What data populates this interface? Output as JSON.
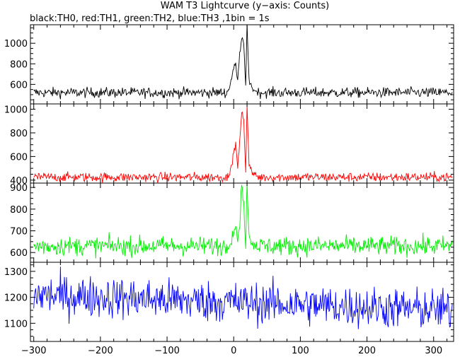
{
  "title": "WAM T3 Lightcurve (y−axis: Counts)",
  "subtitle": "black:TH0, red:TH1, green:TH2, blue:TH3 ,1bin = 1s",
  "chart_data": {
    "type": "line",
    "xlim": [
      -305,
      330
    ],
    "xticks": [
      -300,
      -200,
      -100,
      0,
      100,
      200,
      300
    ],
    "bin_seconds": 1,
    "panels": [
      {
        "name": "TH0",
        "color": "#000000",
        "ylim": [
          410,
          1180
        ],
        "yticks": [
          600,
          800,
          1000
        ],
        "baseline": 520,
        "noise_sd": 25,
        "burst": [
          {
            "x": -8,
            "y": 540
          },
          {
            "x": -3,
            "y": 640
          },
          {
            "x": 0,
            "y": 760
          },
          {
            "x": 3,
            "y": 810
          },
          {
            "x": 6,
            "y": 620
          },
          {
            "x": 9,
            "y": 880
          },
          {
            "x": 12,
            "y": 1060
          },
          {
            "x": 15,
            "y": 1000
          },
          {
            "x": 18,
            "y": 560
          },
          {
            "x": 20,
            "y": 1180
          },
          {
            "x": 23,
            "y": 640
          },
          {
            "x": 28,
            "y": 560
          },
          {
            "x": 35,
            "y": 530
          }
        ]
      },
      {
        "name": "TH1",
        "color": "#ff0000",
        "ylim": [
          375,
          1045
        ],
        "yticks": [
          400,
          600,
          800,
          1000
        ],
        "baseline": 425,
        "noise_sd": 20,
        "burst": [
          {
            "x": -8,
            "y": 440
          },
          {
            "x": -3,
            "y": 520
          },
          {
            "x": 0,
            "y": 640
          },
          {
            "x": 3,
            "y": 700
          },
          {
            "x": 6,
            "y": 500
          },
          {
            "x": 9,
            "y": 720
          },
          {
            "x": 12,
            "y": 990
          },
          {
            "x": 15,
            "y": 900
          },
          {
            "x": 18,
            "y": 470
          },
          {
            "x": 20,
            "y": 1045
          },
          {
            "x": 23,
            "y": 540
          },
          {
            "x": 28,
            "y": 460
          },
          {
            "x": 35,
            "y": 435
          }
        ]
      },
      {
        "name": "TH2",
        "color": "#00ee00",
        "ylim": [
          555,
          920
        ],
        "yticks": [
          600,
          700,
          800,
          900
        ],
        "baseline": 630,
        "noise_sd": 22,
        "burst": [
          {
            "x": -8,
            "y": 640
          },
          {
            "x": -3,
            "y": 660
          },
          {
            "x": 0,
            "y": 700
          },
          {
            "x": 3,
            "y": 720
          },
          {
            "x": 6,
            "y": 650
          },
          {
            "x": 9,
            "y": 720
          },
          {
            "x": 12,
            "y": 920
          },
          {
            "x": 15,
            "y": 820
          },
          {
            "x": 18,
            "y": 640
          },
          {
            "x": 20,
            "y": 920
          },
          {
            "x": 23,
            "y": 680
          },
          {
            "x": 28,
            "y": 640
          },
          {
            "x": 35,
            "y": 630
          }
        ]
      },
      {
        "name": "TH3",
        "color": "#0000ff",
        "ylim": [
          1030,
          1335
        ],
        "yticks": [
          1100,
          1200,
          1300
        ],
        "baseline_start": 1210,
        "baseline_end": 1150,
        "noise_sd": 40,
        "burst": []
      }
    ]
  }
}
